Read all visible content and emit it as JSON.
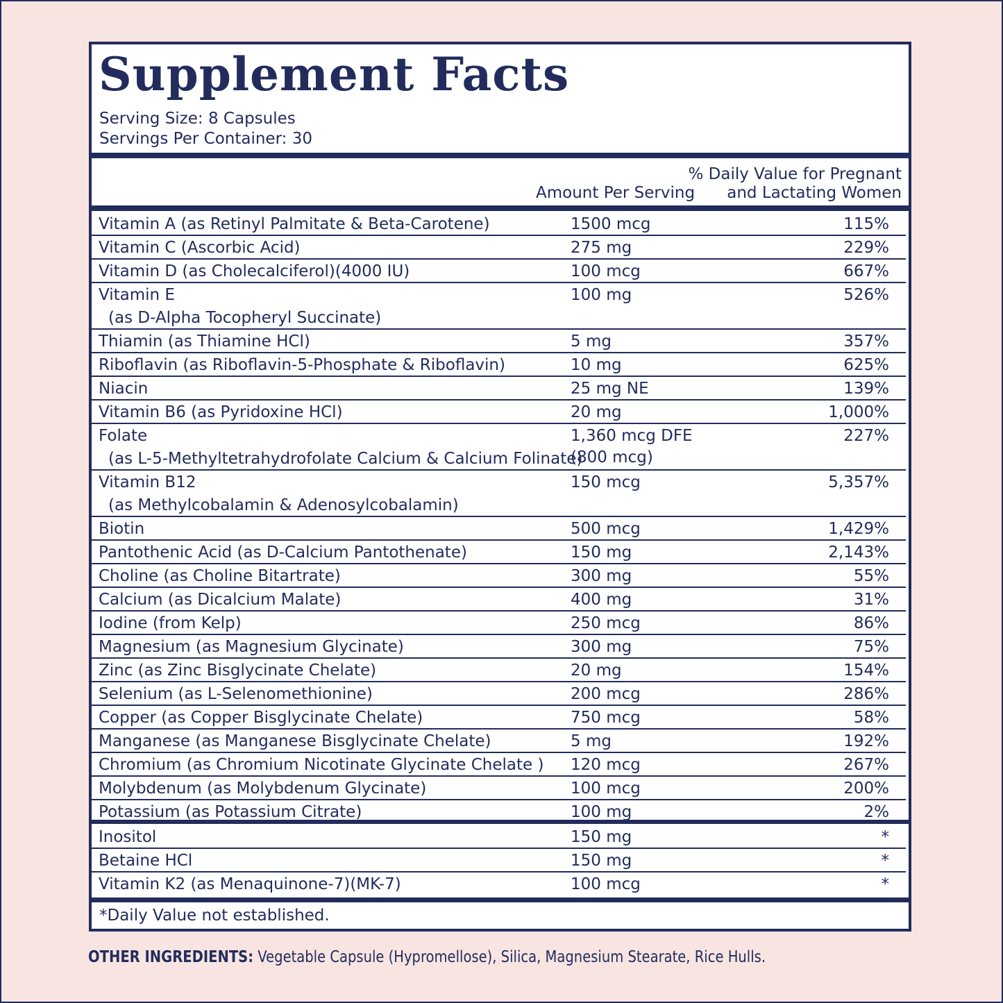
{
  "header": {
    "title": "Supplement Facts",
    "serving_size": "Serving Size: 8 Capsules",
    "servings_per_container": "Servings Per Container: 30"
  },
  "columns": {
    "amount": "Amount Per Serving",
    "dv_line1": "% Daily Value for Pregnant",
    "dv_line2": "and Lactating Women"
  },
  "table": {
    "rows": [
      {
        "name": "Vitamin A (as Retinyl Palmitate & Beta-Carotene)",
        "amount": "1500 mcg",
        "dv": "115%"
      },
      {
        "name": "Vitamin C (Ascorbic Acid)",
        "amount": "275 mg",
        "dv": "229%"
      },
      {
        "name": "Vitamin D (as Cholecalciferol)(4000 IU)",
        "amount": "100 mcg",
        "dv": "667%"
      },
      {
        "name": "Vitamin E",
        "detail": "(as D-Alpha Tocopheryl Succinate)",
        "amount": "100 mg",
        "dv": "526%"
      },
      {
        "name": "Thiamin (as Thiamine HCl)",
        "amount": "5 mg",
        "dv": "357%"
      },
      {
        "name": "Riboflavin (as Riboflavin-5-Phosphate & Riboflavin)",
        "amount": "10 mg",
        "dv": "625%"
      },
      {
        "name": "Niacin",
        "amount": "25 mg NE",
        "dv": "139%"
      },
      {
        "name": "Vitamin B6 (as Pyridoxine HCl)",
        "amount": "20 mg",
        "dv": "1,000%"
      },
      {
        "name": "Folate",
        "detail": "(as L-5-Methyltetrahydrofolate Calcium & Calcium Folinate)",
        "amount": "1,360 mcg DFE",
        "amount_detail": "(800 mcg)",
        "dv": "227%"
      },
      {
        "name": "Vitamin B12",
        "detail": "(as Methylcobalamin & Adenosylcobalamin)",
        "amount": "150 mcg",
        "dv": "5,357%"
      },
      {
        "name": "Biotin",
        "amount": "500 mcg",
        "dv": "1,429%"
      },
      {
        "name": "Pantothenic Acid (as D-Calcium Pantothenate)",
        "amount": "150 mg",
        "dv": "2,143%"
      },
      {
        "name": "Choline (as Choline Bitartrate)",
        "amount": "300 mg",
        "dv": "55%"
      },
      {
        "name": "Calcium (as Dicalcium Malate)",
        "amount": "400 mg",
        "dv": "31%"
      },
      {
        "name": "Iodine (from Kelp)",
        "amount": "250 mcg",
        "dv": "86%"
      },
      {
        "name": "Magnesium (as Magnesium Glycinate)",
        "amount": "300 mg",
        "dv": "75%"
      },
      {
        "name": "Zinc (as Zinc Bisglycinate Chelate)",
        "amount": "20 mg",
        "dv": "154%"
      },
      {
        "name": "Selenium (as L-Selenomethionine)",
        "amount": "200 mcg",
        "dv": "286%"
      },
      {
        "name": "Copper (as Copper Bisglycinate Chelate)",
        "amount": "750 mcg",
        "dv": "58%"
      },
      {
        "name": "Manganese (as Manganese Bisglycinate Chelate)",
        "amount": "5 mg",
        "dv": "192%"
      },
      {
        "name": "Chromium (as Chromium Nicotinate Glycinate Chelate )",
        "amount": "120 mcg",
        "dv": "267%"
      },
      {
        "name": "Molybdenum (as Molybdenum Glycinate)",
        "amount": "100 mcg",
        "dv": "200%"
      },
      {
        "name": "Potassium (as Potassium Citrate)",
        "amount": "100 mg",
        "dv": "2%"
      }
    ],
    "other_rows": [
      {
        "name": "Inositol",
        "amount": "150 mg",
        "dv": "*"
      },
      {
        "name": "Betaine HCl",
        "amount": "150 mg",
        "dv": "*"
      },
      {
        "name": "Vitamin K2 (as Menaquinone-7)(MK-7)",
        "amount": "100 mcg",
        "dv": "*"
      }
    ]
  },
  "footnote": "*Daily Value not established.",
  "other_ingredients": {
    "label": "OTHER INGREDIENTS:",
    "text": "Vegetable Capsule (Hypromellose), Silica, Magnesium Stearate, Rice Hulls."
  }
}
